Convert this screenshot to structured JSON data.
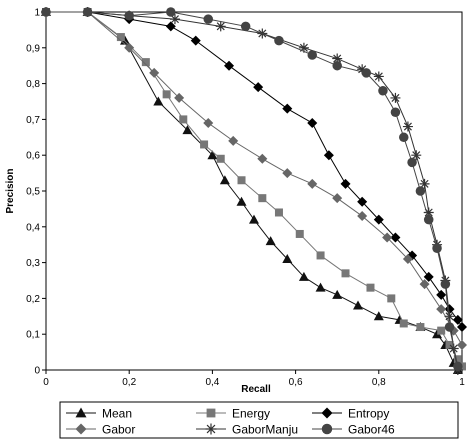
{
  "chart_data": {
    "type": "line",
    "title": "",
    "xlabel": "Recall",
    "ylabel": "Precision",
    "xlim": [
      0,
      1
    ],
    "ylim": [
      0,
      1
    ],
    "x_tick_labels": [
      "0",
      "0,2",
      "0,4",
      "0,6",
      "0,8",
      "1"
    ],
    "y_tick_labels": [
      "0",
      "0,1",
      "0,2",
      "0,3",
      "0,4",
      "0,5",
      "0,6",
      "0,7",
      "0,8",
      "0,9",
      "1"
    ],
    "grid": false,
    "legend_position": "bottom",
    "series": [
      {
        "name": "Mean",
        "marker": "triangle",
        "color": "#111111",
        "points": [
          [
            0,
            1
          ],
          [
            0.1,
            1
          ],
          [
            0.19,
            0.92
          ],
          [
            0.27,
            0.75
          ],
          [
            0.34,
            0.67
          ],
          [
            0.4,
            0.6
          ],
          [
            0.43,
            0.53
          ],
          [
            0.47,
            0.47
          ],
          [
            0.5,
            0.42
          ],
          [
            0.54,
            0.36
          ],
          [
            0.58,
            0.31
          ],
          [
            0.62,
            0.26
          ],
          [
            0.66,
            0.23
          ],
          [
            0.7,
            0.21
          ],
          [
            0.75,
            0.18
          ],
          [
            0.8,
            0.15
          ],
          [
            0.85,
            0.14
          ],
          [
            0.9,
            0.12
          ],
          [
            0.94,
            0.1
          ],
          [
            0.96,
            0.07
          ],
          [
            0.98,
            0.02
          ],
          [
            0.99,
            0
          ]
        ]
      },
      {
        "name": "Energy",
        "marker": "square",
        "color": "#777777",
        "points": [
          [
            0,
            1
          ],
          [
            0.1,
            1
          ],
          [
            0.18,
            0.93
          ],
          [
            0.24,
            0.86
          ],
          [
            0.29,
            0.77
          ],
          [
            0.33,
            0.7
          ],
          [
            0.38,
            0.63
          ],
          [
            0.42,
            0.59
          ],
          [
            0.47,
            0.53
          ],
          [
            0.52,
            0.48
          ],
          [
            0.56,
            0.44
          ],
          [
            0.61,
            0.38
          ],
          [
            0.66,
            0.32
          ],
          [
            0.72,
            0.27
          ],
          [
            0.78,
            0.23
          ],
          [
            0.83,
            0.2
          ],
          [
            0.86,
            0.13
          ],
          [
            0.9,
            0.12
          ],
          [
            0.95,
            0.11
          ],
          [
            0.97,
            0.07
          ],
          [
            0.99,
            0.03
          ],
          [
            1.0,
            0.01
          ]
        ]
      },
      {
        "name": "Entropy",
        "marker": "diamond",
        "color": "#000000",
        "points": [
          [
            0,
            1
          ],
          [
            0.1,
            1
          ],
          [
            0.2,
            0.98
          ],
          [
            0.3,
            0.96
          ],
          [
            0.36,
            0.92
          ],
          [
            0.44,
            0.85
          ],
          [
            0.51,
            0.79
          ],
          [
            0.58,
            0.73
          ],
          [
            0.64,
            0.69
          ],
          [
            0.68,
            0.6
          ],
          [
            0.72,
            0.52
          ],
          [
            0.76,
            0.47
          ],
          [
            0.8,
            0.42
          ],
          [
            0.84,
            0.37
          ],
          [
            0.88,
            0.32
          ],
          [
            0.92,
            0.26
          ],
          [
            0.95,
            0.21
          ],
          [
            0.97,
            0.17
          ],
          [
            0.99,
            0.14
          ],
          [
            1.0,
            0.12
          ]
        ]
      },
      {
        "name": "Gabor",
        "marker": "diamond",
        "color": "#666666",
        "points": [
          [
            0,
            1
          ],
          [
            0.1,
            1
          ],
          [
            0.2,
            0.9
          ],
          [
            0.26,
            0.83
          ],
          [
            0.32,
            0.76
          ],
          [
            0.39,
            0.69
          ],
          [
            0.45,
            0.64
          ],
          [
            0.52,
            0.59
          ],
          [
            0.58,
            0.55
          ],
          [
            0.64,
            0.52
          ],
          [
            0.7,
            0.48
          ],
          [
            0.76,
            0.43
          ],
          [
            0.82,
            0.37
          ],
          [
            0.87,
            0.31
          ],
          [
            0.91,
            0.24
          ],
          [
            0.95,
            0.17
          ],
          [
            0.98,
            0.11
          ],
          [
            1.0,
            0.07
          ]
        ]
      },
      {
        "name": "GaborManju",
        "marker": "star",
        "color": "#333333",
        "points": [
          [
            0,
            1
          ],
          [
            0.1,
            1
          ],
          [
            0.2,
            0.99
          ],
          [
            0.31,
            0.98
          ],
          [
            0.42,
            0.96
          ],
          [
            0.52,
            0.94
          ],
          [
            0.62,
            0.9
          ],
          [
            0.7,
            0.87
          ],
          [
            0.76,
            0.84
          ],
          [
            0.8,
            0.82
          ],
          [
            0.84,
            0.76
          ],
          [
            0.87,
            0.68
          ],
          [
            0.89,
            0.6
          ],
          [
            0.91,
            0.52
          ],
          [
            0.92,
            0.44
          ],
          [
            0.94,
            0.35
          ],
          [
            0.96,
            0.25
          ],
          [
            0.97,
            0.15
          ],
          [
            0.98,
            0.06
          ],
          [
            0.99,
            0
          ]
        ]
      },
      {
        "name": "Gabor46",
        "marker": "circle",
        "color": "#444444",
        "points": [
          [
            0,
            1
          ],
          [
            0.1,
            1
          ],
          [
            0.2,
            0.99
          ],
          [
            0.3,
            1.0
          ],
          [
            0.39,
            0.98
          ],
          [
            0.48,
            0.96
          ],
          [
            0.56,
            0.92
          ],
          [
            0.64,
            0.88
          ],
          [
            0.7,
            0.85
          ],
          [
            0.77,
            0.83
          ],
          [
            0.81,
            0.78
          ],
          [
            0.84,
            0.72
          ],
          [
            0.86,
            0.65
          ],
          [
            0.88,
            0.58
          ],
          [
            0.9,
            0.5
          ],
          [
            0.92,
            0.42
          ],
          [
            0.94,
            0.34
          ],
          [
            0.96,
            0.24
          ],
          [
            0.97,
            0.12
          ],
          [
            0.99,
            0.01
          ]
        ]
      }
    ]
  }
}
